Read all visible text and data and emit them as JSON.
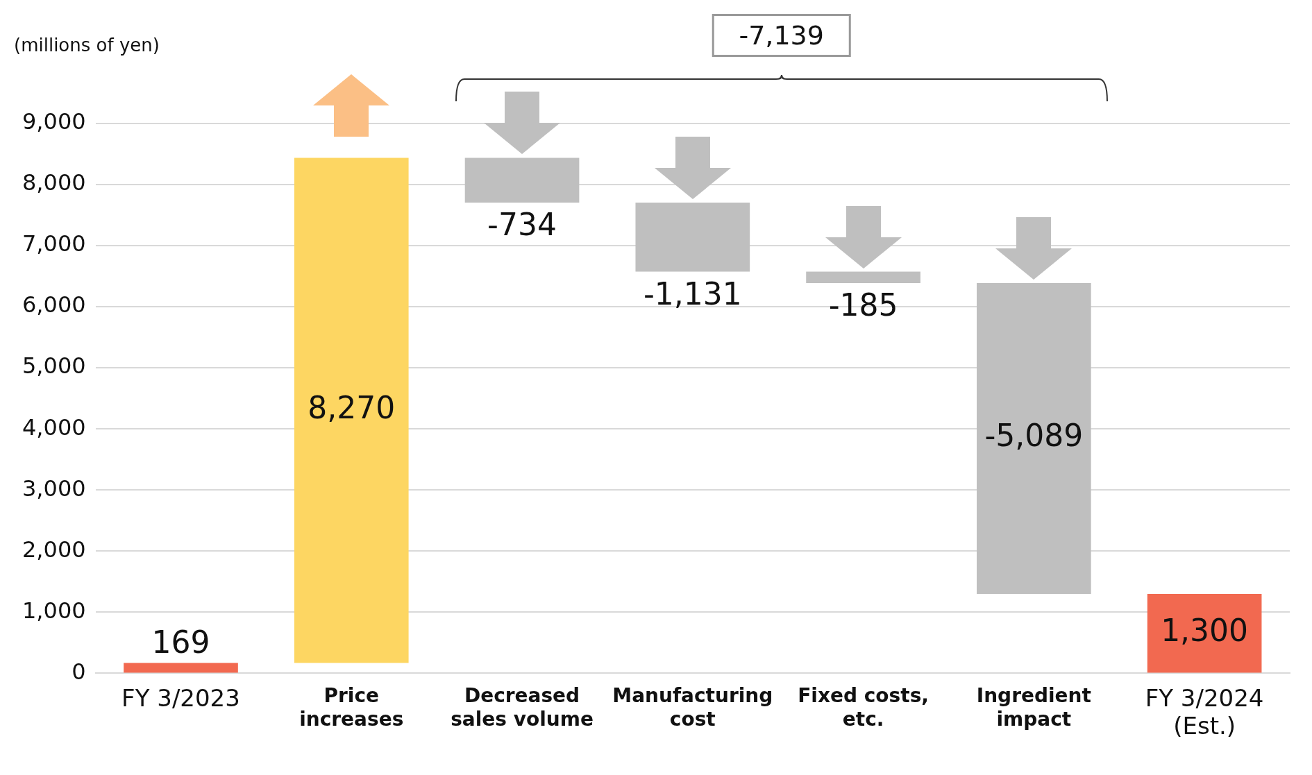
{
  "chart_data": {
    "type": "bar",
    "ylabel": "(millions of yen)",
    "categories": [
      "FY 3/2023",
      "Price increases",
      "Decreased sales volume",
      "Manufacturing cost",
      "Fixed costs, etc.",
      "Ingredient impact",
      "FY 3/2024 (Est.)"
    ],
    "values": [
      169,
      8270,
      -734,
      -1131,
      -185,
      -5089,
      1300
    ],
    "base": [
      0,
      169,
      8439,
      7705,
      6574,
      6389,
      0
    ],
    "colors": [
      "#f26950",
      "#fdd662",
      "#bfbfbf",
      "#bfbfbf",
      "#bfbfbf",
      "#bfbfbf",
      "#f26950"
    ],
    "value_labels": [
      "169",
      "8,270",
      "-734",
      "-1,131",
      "-185",
      "-5,089",
      "1,300"
    ],
    "ylim": [
      0,
      9000
    ],
    "yticks": [
      {
        "value": 0,
        "label": "0"
      },
      {
        "value": 1000,
        "label": "1,000"
      },
      {
        "value": 2000,
        "label": "2,000"
      },
      {
        "value": 3000,
        "label": "3,000"
      },
      {
        "value": 4000,
        "label": "4,000"
      },
      {
        "value": 5000,
        "label": "5,000"
      },
      {
        "value": 6000,
        "label": "6,000"
      },
      {
        "value": 7000,
        "label": "7,000"
      },
      {
        "value": 8000,
        "label": "8,000"
      },
      {
        "value": 9000,
        "label": "9,000"
      }
    ],
    "grid": "y",
    "legend": false,
    "annotations": [
      "-7,139"
    ]
  }
}
